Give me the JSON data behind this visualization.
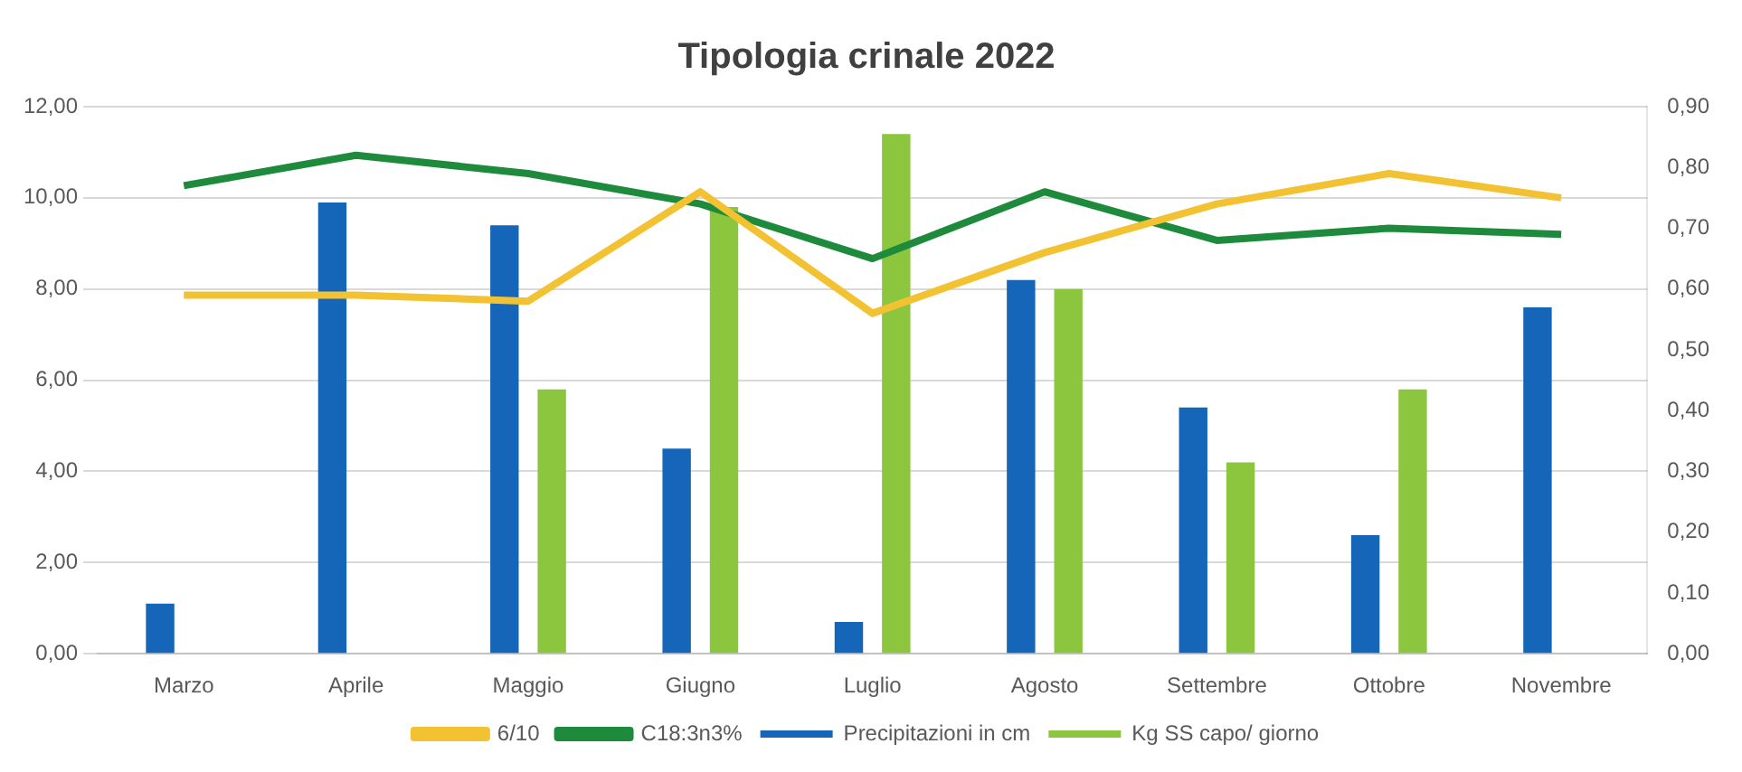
{
  "chart_data": {
    "type": "bar",
    "title": "Tipologia crinale 2022",
    "categories": [
      "Marzo",
      "Aprile",
      "Maggio",
      "Giugno",
      "Luglio",
      "Agosto",
      "Settembre",
      "Ottobre",
      "Novembre"
    ],
    "series": [
      {
        "name": "Precipitazioni in cm",
        "color": "#1565b8",
        "values": [
          1.1,
          9.9,
          9.4,
          4.5,
          0.7,
          8.2,
          5.4,
          2.6,
          7.6
        ]
      },
      {
        "name": "Kg SS capo/ giorno",
        "color": "#8cc63f",
        "values": [
          null,
          null,
          5.8,
          9.8,
          11.4,
          8.0,
          4.2,
          5.8,
          null
        ]
      },
      {
        "name": "6/10",
        "type": "line",
        "axis": "y2",
        "color": "#f2c233",
        "values": [
          0.59,
          0.59,
          0.58,
          0.76,
          0.56,
          0.66,
          0.74,
          0.79,
          0.75
        ]
      },
      {
        "name": "C18:3n3%",
        "type": "line",
        "axis": "y2",
        "color": "#1e8a3c",
        "values": [
          0.77,
          0.82,
          0.79,
          0.74,
          0.65,
          0.76,
          0.68,
          0.7,
          0.69
        ]
      }
    ],
    "ylim": [
      0,
      12
    ],
    "yticks": [
      {
        "value": 0,
        "label": "0,00"
      },
      {
        "value": 2,
        "label": "2,00"
      },
      {
        "value": 4,
        "label": "4,00"
      },
      {
        "value": 6,
        "label": "6,00"
      },
      {
        "value": 8,
        "label": "8,00"
      },
      {
        "value": 10,
        "label": "10,00"
      },
      {
        "value": 12,
        "label": "12,00"
      }
    ],
    "y2lim": [
      0,
      0.9
    ],
    "y2ticks": [
      {
        "value": 0,
        "label": "0,00"
      },
      {
        "value": 0.1,
        "label": "0,10"
      },
      {
        "value": 0.2,
        "label": "0,20"
      },
      {
        "value": 0.3,
        "label": "0,30"
      },
      {
        "value": 0.4,
        "label": "0,40"
      },
      {
        "value": 0.5,
        "label": "0,50"
      },
      {
        "value": 0.6,
        "label": "0,60"
      },
      {
        "value": 0.7,
        "label": "0,70"
      },
      {
        "value": 0.8,
        "label": "0,80"
      },
      {
        "value": 0.9,
        "label": "0,90"
      }
    ],
    "grid": "y",
    "legend": "bottom",
    "marker": "none"
  }
}
